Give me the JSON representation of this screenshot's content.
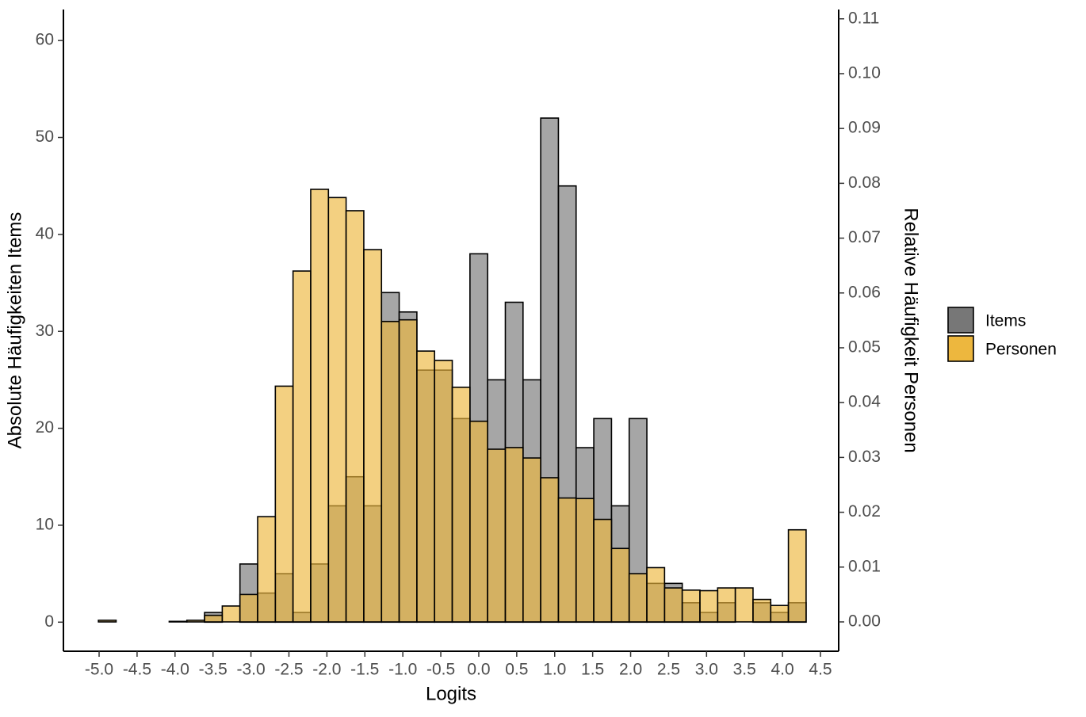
{
  "chart_data": {
    "type": "histogram",
    "xlabel": "Logits",
    "ylabel": "Absolute Häufigkeiten Items",
    "y2label": "Relative Häufigkeit Personen",
    "bins": [
      -5.009,
      -4.776,
      -4.543,
      -4.31,
      -4.077,
      -3.844,
      -3.611,
      -3.378,
      -3.145,
      -2.912,
      -2.679,
      -2.446,
      -2.213,
      -1.98,
      -1.747,
      -1.514,
      -1.281,
      -1.048,
      -0.815,
      -0.582,
      -0.349,
      -0.116,
      0.117,
      0.35,
      0.583,
      0.816,
      1.049,
      1.282,
      1.515,
      1.748,
      1.981,
      2.214,
      2.447,
      2.68,
      2.913,
      3.146,
      3.379,
      3.612,
      3.845,
      4.078,
      4.311
    ],
    "series": [
      {
        "name": "Items",
        "color": "#777777",
        "values": [
          0,
          0,
          0,
          0,
          0,
          0,
          1,
          0,
          6,
          3,
          5,
          1,
          6,
          12,
          15,
          12,
          34,
          32,
          26,
          26,
          21,
          38,
          25,
          33,
          25,
          52,
          45,
          18,
          21,
          12,
          21,
          4,
          4,
          2,
          1,
          2,
          0,
          2,
          1,
          2
        ]
      },
      {
        "name": "Personen",
        "color": "#edb73e",
        "axis": "y2",
        "values": [
          0.0003,
          0,
          0,
          0,
          0.0001,
          0.0003,
          0.0012,
          0.0029,
          0.005,
          0.0192,
          0.043,
          0.064,
          0.0789,
          0.0774,
          0.075,
          0.0679,
          0.0548,
          0.0551,
          0.0494,
          0.0477,
          0.0428,
          0.0366,
          0.0315,
          0.0318,
          0.0299,
          0.0263,
          0.0226,
          0.0225,
          0.0187,
          0.0134,
          0.0088,
          0.0099,
          0.0062,
          0.0058,
          0.0057,
          0.0062,
          0.0062,
          0.0041,
          0.003,
          0.0168
        ]
      }
    ],
    "xlim": [
      -5.47,
      4.74
    ],
    "xticks": [
      {
        "value": -5,
        "label": "-5.0"
      },
      -4.5,
      {
        "value": -4,
        "label": "-4.0"
      },
      -3.5,
      {
        "value": -3,
        "label": "-3.0"
      },
      -2.5,
      {
        "value": -2,
        "label": "-2.0"
      },
      -1.5,
      {
        "value": -1,
        "label": "-1.0"
      },
      -0.5,
      {
        "value": 0,
        "label": "0.0"
      },
      0.5,
      {
        "value": 1,
        "label": "1.0"
      },
      1.5,
      {
        "value": 2,
        "label": "2.0"
      },
      2.5,
      {
        "value": 3,
        "label": "3.0"
      },
      3.5,
      {
        "value": 4,
        "label": "4.0"
      },
      4.5
    ],
    "ylim": [
      -3.0,
      63.2
    ],
    "yticks": [
      0,
      10,
      20,
      30,
      40,
      50,
      60
    ],
    "y2lim": [
      -0.00535,
      0.1117
    ],
    "y2ticks": [
      {
        "value": 0,
        "label": "0.00"
      },
      0.01,
      0.02,
      0.03,
      0.04,
      0.05,
      0.06,
      0.07,
      0.08,
      0.09,
      {
        "value": 0.1,
        "label": "0.10"
      },
      0.11
    ],
    "legend": "right"
  }
}
